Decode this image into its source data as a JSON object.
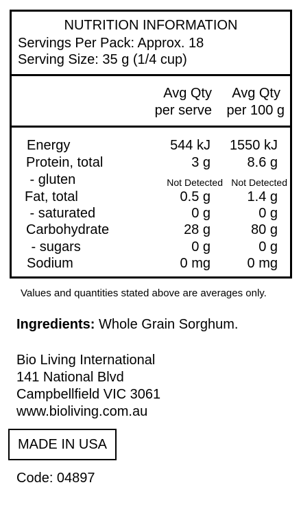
{
  "panel": {
    "title": "NUTRITION INFORMATION",
    "servings_per_pack": "Servings Per Pack: Approx. 18",
    "serving_size": "Serving Size: 35 g (1/4 cup)",
    "col_serve_line1": "Avg Qty",
    "col_serve_line2": "per serve",
    "col_100g_line1": "Avg Qty",
    "col_100g_line2": "per 100 g",
    "rows": [
      {
        "label": "Energy",
        "serve": "544 kJ",
        "per100": "1550 kJ"
      },
      {
        "label": "Protein, total",
        "serve": "3 g",
        "per100": "8.6 g"
      },
      {
        "label": " - gluten",
        "serve": "Not Detected",
        "per100": "Not Detected"
      },
      {
        "label": "Fat, total",
        "serve": "0.5 g",
        "per100": "1.4 g"
      },
      {
        "label": " - saturated",
        "serve": "0 g",
        "per100": "0 g"
      },
      {
        "label": "Carbohydrate",
        "serve": "28 g",
        "per100": "80 g"
      },
      {
        "label": " - sugars",
        "serve": "0 g",
        "per100": "0 g"
      },
      {
        "label": "Sodium",
        "serve": "0 mg",
        "per100": "0 mg"
      }
    ]
  },
  "footnote": "Values and quantities stated above are averages only.",
  "ingredients": {
    "label": "Ingredients:",
    "text": " Whole Grain Sorghum."
  },
  "address": {
    "line1": "Bio Living International",
    "line2": "141 National Blvd",
    "line3": "Campbellfield VIC 3061",
    "line4": "www.bioliving.com.au"
  },
  "made_in": "MADE IN USA",
  "code": "Code: 04897"
}
